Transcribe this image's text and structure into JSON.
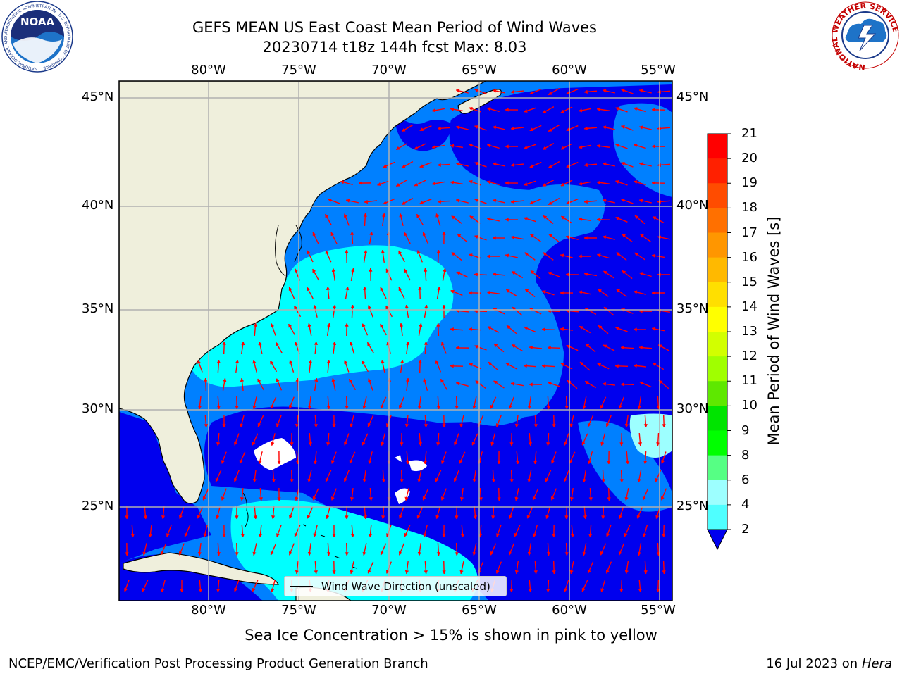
{
  "title": {
    "line1": "GEFS MEAN US East Coast Mean Period of Wind Waves",
    "line2": "20230714 t18z 144h fcst   Max: 8.03"
  },
  "map": {
    "lon_labels": [
      "80°W",
      "75°W",
      "70°W",
      "65°W",
      "60°W",
      "55°W"
    ],
    "lat_labels": [
      "45°N",
      "40°N",
      "35°N",
      "30°N",
      "25°N"
    ],
    "legend_label": "Wind Wave Direction (unscaled)",
    "colors": {
      "land": "#efefdc",
      "sea_dark": "#0000ee",
      "sea_mid": "#0080ff",
      "sea_light": "#00ffff",
      "sea_pale": "#9dffff",
      "arrows": "#ff0000",
      "grid": "#b0b0b0"
    }
  },
  "colorbar": {
    "title": "Mean Period of Wind Waves [s]",
    "ticks": [
      "21",
      "20",
      "19",
      "18",
      "17",
      "16",
      "15",
      "14",
      "13",
      "12",
      "11",
      "10",
      "9",
      "8",
      "6",
      "4",
      "2"
    ],
    "colors": [
      "#ff0000",
      "#ff2000",
      "#ff4c00",
      "#ff7000",
      "#ff9600",
      "#ffb900",
      "#ffdf00",
      "#ffff00",
      "#d2ff00",
      "#a0ff00",
      "#5ee800",
      "#00e400",
      "#00ff00",
      "#56ff84",
      "#9dffff",
      "#4fffff",
      "#00ffff",
      "#0080ff",
      "#0000ee"
    ]
  },
  "logos": {
    "noaa_text": "NOAA",
    "noaa_ring": "NATIONAL OCEANIC AND ATMOSPHERIC ADMINISTRATION · U.S. DEPARTMENT OF COMMERCE",
    "nws_ring": "NATIONAL WEATHER SERVICE"
  },
  "footnote": "Sea Ice Concentration > 15% is shown in pink to yellow",
  "credit": "NCEP/EMC/Verification Post Processing Product Generation Branch",
  "date": "16 Jul 2023 on",
  "host": "Hera"
}
